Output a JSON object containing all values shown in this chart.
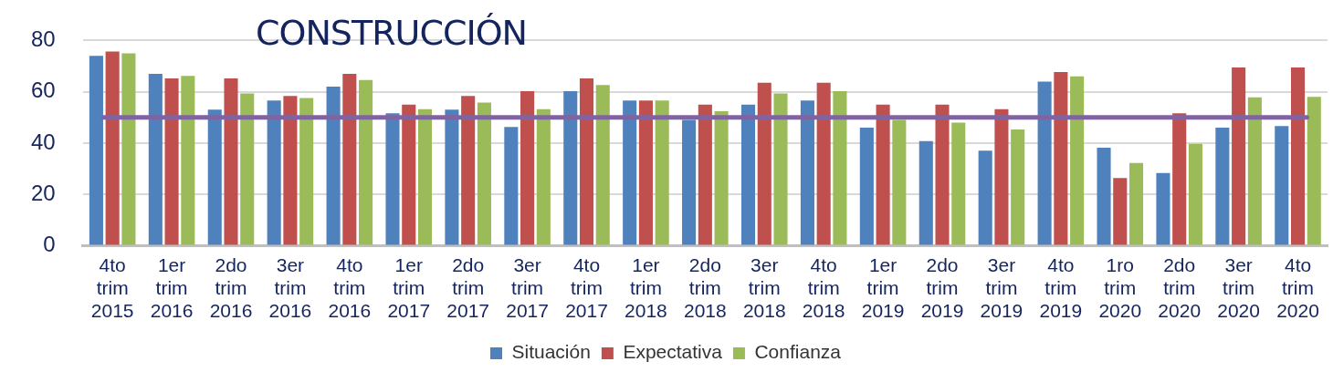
{
  "chart_data": {
    "type": "bar",
    "title": "CONSTRUCCIÓN",
    "categories": [
      "4to trim 2015",
      "1er trim 2016",
      "2do trim 2016",
      "3er trim 2016",
      "4to trim 2016",
      "1er trim 2017",
      "2do trim 2017",
      "3er trim 2017",
      "4to trim 2017",
      "1er trim 2018",
      "2do trim 2018",
      "3er trim 2018",
      "4to trim 2018",
      "1er trim 2019",
      "2do trim 2019",
      "3er trim 2019",
      "4to trim 2019",
      "1ro trim 2020",
      "2do trim 2020",
      "3er trim 2020",
      "4to trim 2020"
    ],
    "series": [
      {
        "name": "Situación",
        "color": "#4f81bd",
        "values": [
          74,
          67,
          53,
          56.6,
          62,
          51.6,
          53,
          46.3,
          60.2,
          56.6,
          49,
          55,
          56.6,
          46,
          40.8,
          37,
          64,
          38.2,
          28.3,
          46,
          46.6
        ]
      },
      {
        "name": "Expectativa",
        "color": "#c0504d",
        "values": [
          75.7,
          65.2,
          65.2,
          58.4,
          67,
          55,
          58.4,
          60.2,
          65.2,
          56.6,
          55,
          63.5,
          63.5,
          55,
          55,
          53.2,
          67.7,
          26.4,
          51.6,
          69.5,
          69.5
        ]
      },
      {
        "name": "Confianza",
        "color": "#9bbb59",
        "values": [
          75,
          66.2,
          59.3,
          57.6,
          64.6,
          53.2,
          55.8,
          53.2,
          62.6,
          56.6,
          52.4,
          59.3,
          60.2,
          49,
          48,
          45.3,
          66,
          32.2,
          39.7,
          57.8,
          58
        ]
      }
    ],
    "ylim": [
      0,
      80
    ],
    "yticks": [
      0,
      20,
      40,
      60,
      80
    ],
    "grid": "y",
    "legend": "bottom",
    "ref_lines": [
      {
        "axis": "y",
        "value": 50,
        "color": "#8064a2"
      }
    ]
  }
}
